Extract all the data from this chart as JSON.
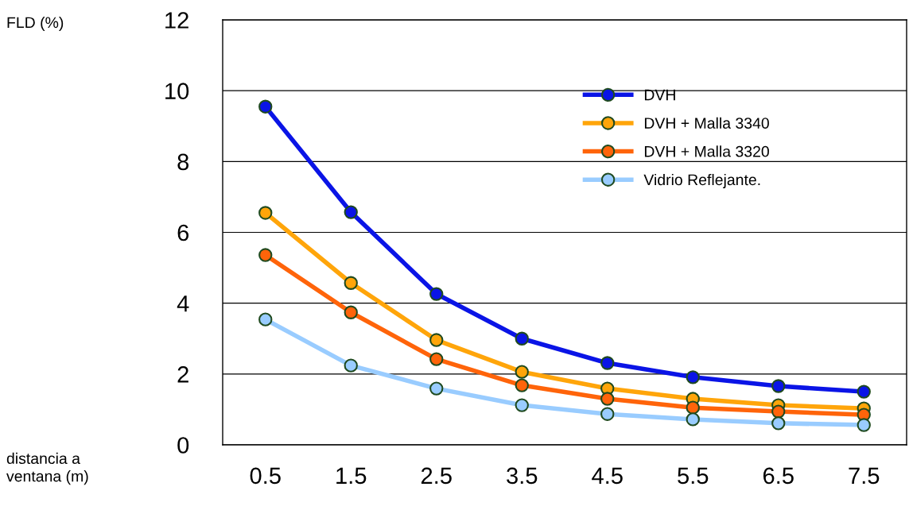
{
  "chart_data": {
    "type": "line",
    "annotations": [
      "FLD (%)",
      "distancia a\nventana (m)"
    ],
    "categories": [
      "0.5",
      "1.5",
      "2.5",
      "3.5",
      "4.5",
      "5.5",
      "6.5",
      "7.5"
    ],
    "ylim": [
      0,
      12
    ],
    "yticks": [
      0,
      2,
      4,
      6,
      8,
      10,
      12
    ],
    "grid": "y",
    "legend": "top right",
    "marker": "circle",
    "line_style": "solid",
    "series": [
      {
        "name": "DVH",
        "color": "#0a14e6",
        "values": [
          9.55,
          6.57,
          4.26,
          3.0,
          2.31,
          1.91,
          1.66,
          1.5
        ]
      },
      {
        "name": "DVH + Malla 3340",
        "color": "#ffa50a",
        "values": [
          6.55,
          4.57,
          2.96,
          2.06,
          1.59,
          1.3,
          1.12,
          1.03
        ]
      },
      {
        "name": "DVH + Malla 3320",
        "color": "#ff640a",
        "values": [
          5.36,
          3.74,
          2.42,
          1.68,
          1.3,
          1.05,
          0.94,
          0.85
        ]
      },
      {
        "name": "Vidrio Reflejante.",
        "color": "#99ccff",
        "values": [
          3.54,
          2.24,
          1.59,
          1.12,
          0.87,
          0.72,
          0.61,
          0.56
        ]
      }
    ]
  }
}
